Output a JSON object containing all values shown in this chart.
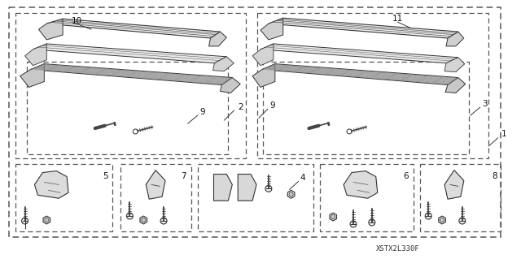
{
  "footer_text": "XSTX2L330F",
  "bg_color": "#ffffff",
  "fig_width": 6.4,
  "fig_height": 3.19,
  "dpi": 100
}
